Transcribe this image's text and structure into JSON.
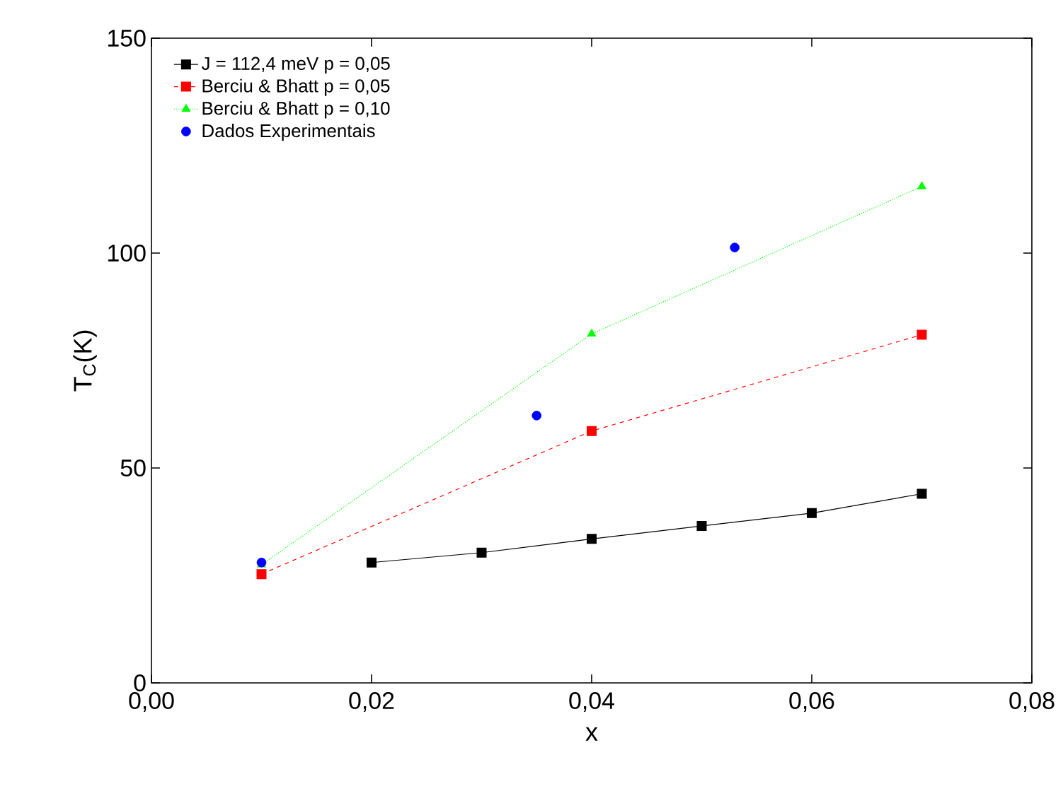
{
  "chart_data": {
    "type": "line",
    "xlabel": "x",
    "ylabel": "T$_{C}$(K)",
    "xlim": [
      0,
      0.08
    ],
    "ylim": [
      0,
      150
    ],
    "xticks": [
      {
        "value": 0,
        "label": "0,00"
      },
      {
        "value": 0.02,
        "label": "0,02"
      },
      {
        "value": 0.04,
        "label": "0,04"
      },
      {
        "value": 0.06,
        "label": "0,06"
      },
      {
        "value": 0.08,
        "label": "0,08"
      }
    ],
    "yticks": [
      0,
      50,
      100,
      150
    ],
    "legend": "top left",
    "grid": false,
    "series": [
      {
        "name": "J = 112,4 meV p = 0,05",
        "color": "#000000",
        "marker": "square",
        "line_style": "solid",
        "x": [
          0.02,
          0.03,
          0.04,
          0.05,
          0.06,
          0.07
        ],
        "values": [
          28,
          30.3,
          33.5,
          36.5,
          39.5,
          44
        ]
      },
      {
        "name": "Berciu & Bhatt p = 0,05",
        "color": "#ff0000",
        "marker": "square",
        "line_style": "dashed",
        "x": [
          0.01,
          0.04,
          0.07
        ],
        "values": [
          25.3,
          58.6,
          81
        ]
      },
      {
        "name": "Berciu & Bhatt p = 0,10",
        "color": "#00ff00",
        "marker": "triangle",
        "line_style": "dotted",
        "x": [
          0.01,
          0.04,
          0.07
        ],
        "values": [
          27.5,
          81.2,
          115.5
        ]
      },
      {
        "name": "Dados Experimentais",
        "type": "scatter",
        "color": "#0000ff",
        "marker": "circle",
        "x": [
          0.01,
          0.035,
          0.053
        ],
        "values": [
          28,
          62.2,
          101.3
        ]
      }
    ]
  }
}
